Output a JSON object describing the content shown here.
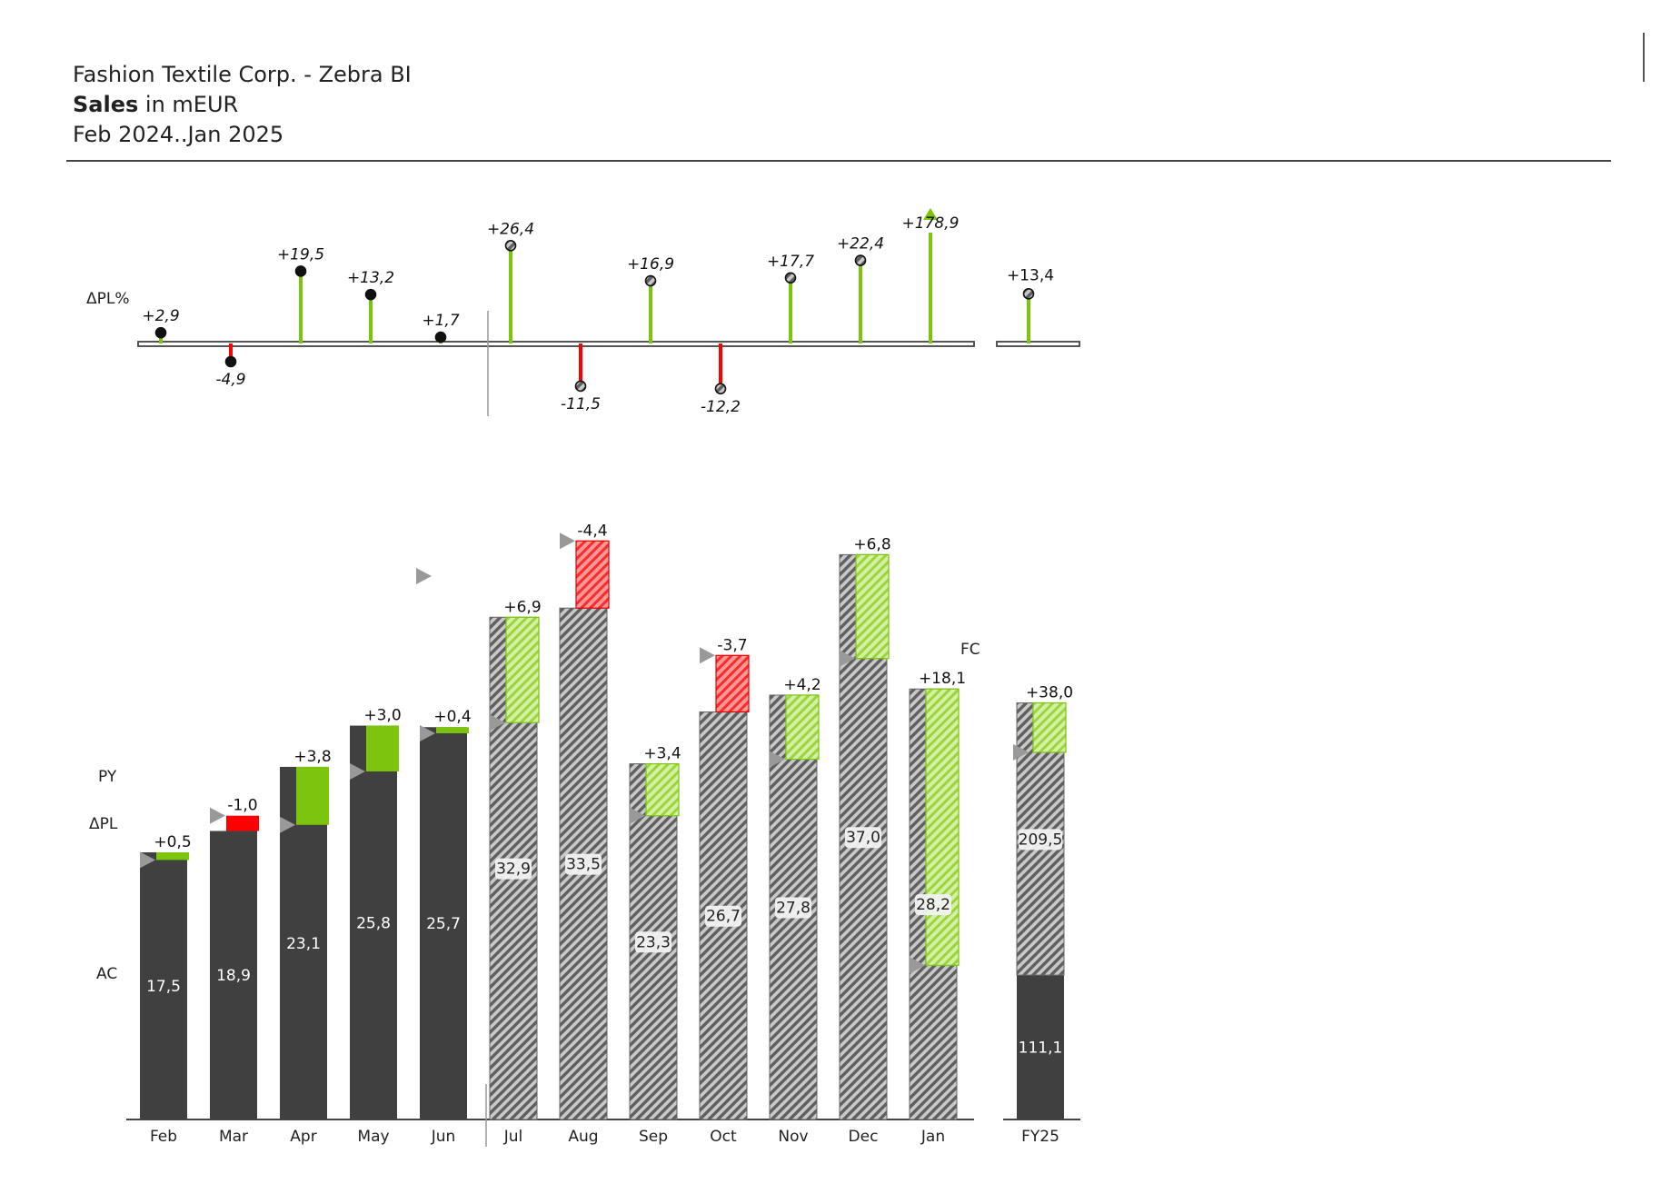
{
  "header": {
    "company": "Fashion Textile Corp. - Zebra BI",
    "measure_bold": "Sales",
    "measure_unit": " in mEUR",
    "period": "Feb 2024..Jan 2025"
  },
  "colors": {
    "actual": "#404040",
    "forecast_hatch": "#8a8a8a",
    "positive": "#7cc40e",
    "negative": "#ff0000",
    "previous_year_marker": "#999999",
    "axis": "#444444"
  },
  "chart_data": {
    "type": "bar",
    "subtype": "variance chart (actual/forecast vs previous year)",
    "row_labels": {
      "delta_pl_percent": "ΔPL%",
      "previous_year": "PY",
      "delta_pl": "ΔPL",
      "actual": "AC",
      "forecast": "FC"
    },
    "categories": [
      "Feb",
      "Mar",
      "Apr",
      "May",
      "Jun",
      "Jul",
      "Aug",
      "Sep",
      "Oct",
      "Nov",
      "Dec",
      "Jan"
    ],
    "scenario": [
      "AC",
      "AC",
      "AC",
      "AC",
      "AC",
      "FC",
      "FC",
      "FC",
      "FC",
      "FC",
      "FC",
      "FC"
    ],
    "values": [
      17.5,
      18.9,
      23.1,
      25.8,
      25.7,
      32.9,
      33.5,
      23.3,
      26.7,
      27.8,
      37.0,
      28.2
    ],
    "value_labels": [
      "17,5",
      "18,9",
      "23,1",
      "25,8",
      "25,7",
      "32,9",
      "33,5",
      "23,3",
      "26,7",
      "27,8",
      "37,0",
      "28,2"
    ],
    "delta_pl": [
      0.5,
      -1.0,
      3.8,
      3.0,
      0.4,
      6.9,
      -4.4,
      3.4,
      -3.7,
      4.2,
      6.8,
      18.1
    ],
    "delta_pl_labels": [
      "+0,5",
      "-1,0",
      "+3,8",
      "+3,0",
      "+0,4",
      "+6,9",
      "-4,4",
      "+3,4",
      "-3,7",
      "+4,2",
      "+6,8",
      "+18,1"
    ],
    "delta_pl_percent": [
      2.9,
      -4.9,
      19.5,
      13.2,
      1.7,
      26.4,
      -11.5,
      16.9,
      -12.2,
      17.7,
      22.4,
      178.9
    ],
    "delta_pl_percent_labels": [
      "+2,9",
      "-4,9",
      "+19,5",
      "+13,2",
      "+1,7",
      "+26,4",
      "-11,5",
      "+16,9",
      "-12,2",
      "+17,7",
      "+22,4",
      "+178,9"
    ],
    "delta_pl_percent_outlier": [
      false,
      false,
      false,
      false,
      false,
      false,
      false,
      false,
      false,
      false,
      false,
      true
    ],
    "previous_year": [
      17.0,
      19.9,
      19.3,
      22.8,
      25.3,
      26.0,
      37.9,
      19.9,
      30.4,
      23.6,
      30.2,
      10.1
    ],
    "total": {
      "category": "FY25",
      "actual": 111.1,
      "actual_label": "111,1",
      "forecast": 209.5,
      "forecast_label": "209,5",
      "delta_pl": 38.0,
      "delta_pl_label": "+38,0",
      "delta_pl_percent": 13.4,
      "delta_pl_percent_label": "+13,4",
      "previous_year": 282.6
    }
  }
}
